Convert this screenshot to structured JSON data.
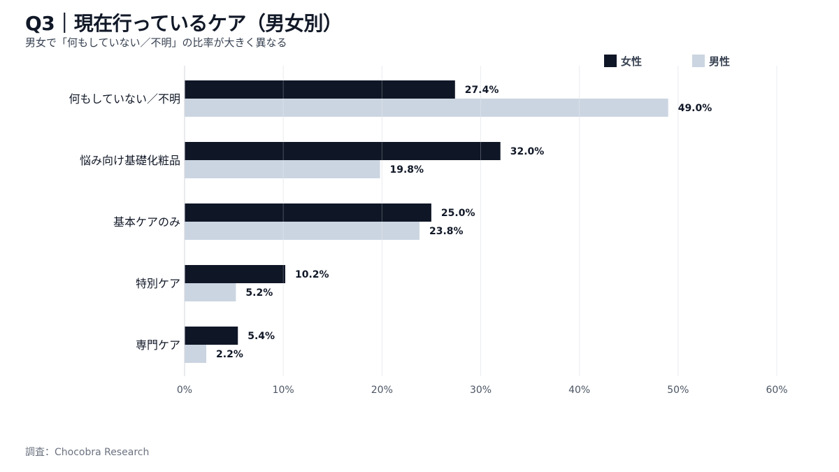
{
  "chart_data": {
    "type": "bar",
    "orientation": "horizontal",
    "title": "Q3｜現在行っているケア（男女別）",
    "subtitle": "男女で「何もしていない／不明」の比率が大きく異なる",
    "categories": [
      "何もしていない／不明",
      "悩み向け基礎化粧品",
      "基本ケアのみ",
      "特別ケア",
      "専門ケア"
    ],
    "series": [
      {
        "name": "女性",
        "color": "#0f1626",
        "values": [
          27.4,
          32.0,
          25.0,
          10.2,
          5.4
        ]
      },
      {
        "name": "男性",
        "color": "#cbd5e1",
        "values": [
          49.0,
          19.8,
          23.8,
          5.2,
          2.2
        ]
      }
    ],
    "xlim": [
      0,
      60
    ],
    "xticks": [
      "0%",
      "10%",
      "20%",
      "30%",
      "40%",
      "50%",
      "60%"
    ],
    "grid": true,
    "legend": "top-right",
    "source": "調査：Chocobra Research"
  }
}
